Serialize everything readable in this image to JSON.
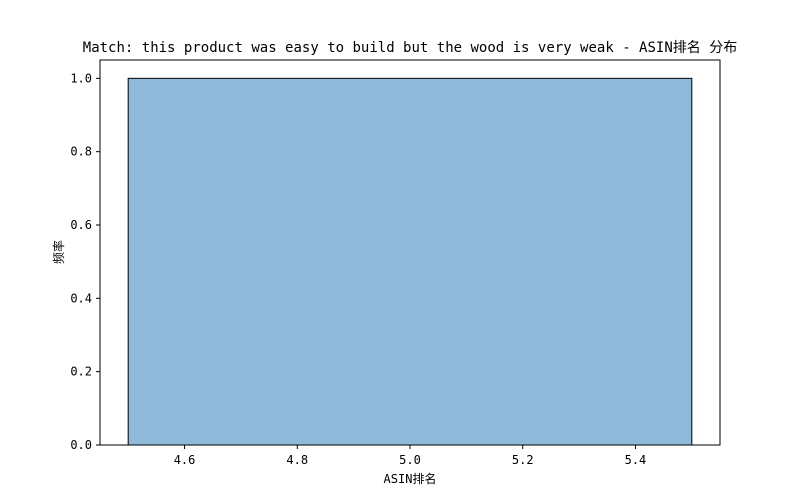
{
  "chart_data": {
    "type": "bar",
    "title": "Match: this product was easy to build but the wood is very weak - ASIN排名 分布",
    "xlabel": "ASIN排名",
    "ylabel": "频率",
    "xlim": [
      4.45,
      5.55
    ],
    "ylim": [
      0,
      1.05
    ],
    "x_ticks": [
      "4.6",
      "4.8",
      "5.0",
      "5.2",
      "5.4"
    ],
    "y_ticks": [
      "0.0",
      "0.2",
      "0.4",
      "0.6",
      "0.8",
      "1.0"
    ],
    "bars": [
      {
        "x_start": 4.5,
        "x_end": 5.5,
        "value": 1.0
      }
    ],
    "bar_color": "#8fbad9",
    "bar_edge_color": "#000000",
    "grid": false,
    "legend": "none"
  }
}
